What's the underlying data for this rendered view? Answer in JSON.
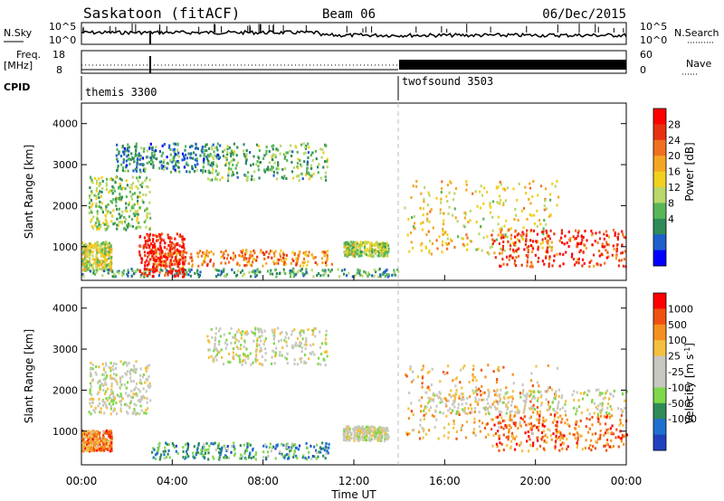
{
  "header": {
    "station": "Saskatoon (fitACF)",
    "beam": "Beam 06",
    "date": "06/Dec/2015"
  },
  "top_panels": {
    "nsky_label": "N.Sky",
    "nsky_ticks": [
      "10^5",
      "10^0"
    ],
    "nsearch_label": "N.Search",
    "nsearch_ticks": [
      "10^5",
      "10^0"
    ],
    "freq_label_1": "Freq.",
    "freq_label_2": "[MHz]",
    "freq_ticks": [
      "18",
      "8"
    ],
    "nave_label": "Nave",
    "nave_ticks": [
      "60",
      "0"
    ],
    "cpid_label": "CPID",
    "cpid_modes": [
      {
        "name": "themis 3300",
        "start_hour": 0
      },
      {
        "name": "twofsound 3503",
        "start_hour": 14
      }
    ]
  },
  "x_axis": {
    "label": "Time UT",
    "ticks": [
      "00:00",
      "04:00",
      "08:00",
      "12:00",
      "16:00",
      "20:00",
      "00:00"
    ],
    "range_hours": [
      0,
      24
    ]
  },
  "chart_data": [
    {
      "type": "heatmap",
      "panel": "power",
      "ylabel": "Slant Range [km]",
      "yticks": [
        "4000",
        "3000",
        "2000",
        "1000"
      ],
      "ylim": [
        180,
        4500
      ],
      "colorbar": {
        "label": "Power [dB]",
        "ticks": [
          "28",
          "24",
          "20",
          "16",
          "12",
          "8",
          "4"
        ],
        "colors": [
          "#0000ff",
          "#1f5fcc",
          "#2e8b57",
          "#58b658",
          "#b8d86a",
          "#f2d020",
          "#f5a623",
          "#f07020",
          "#e83010",
          "#ff0000"
        ]
      },
      "regions": [
        {
          "t": [
            0,
            1.3
          ],
          "r": [
            400,
            1100
          ],
          "level": 0.5
        },
        {
          "t": [
            0.3,
            3.0
          ],
          "r": [
            1400,
            2700
          ],
          "level": 0.4
        },
        {
          "t": [
            3.0,
            11.0
          ],
          "r": [
            500,
            900
          ],
          "level": 0.7
        },
        {
          "t": [
            5.5,
            10.8
          ],
          "r": [
            2600,
            3500
          ],
          "level": 0.35
        },
        {
          "t": [
            1.5,
            6.0
          ],
          "r": [
            2800,
            3500
          ],
          "level": 0.25
        },
        {
          "t": [
            11.5,
            13.5
          ],
          "r": [
            750,
            1100
          ],
          "level": 0.45
        },
        {
          "t": [
            14.2,
            21.0
          ],
          "r": [
            800,
            2600
          ],
          "level": 0.55
        },
        {
          "t": [
            18.0,
            24.0
          ],
          "r": [
            500,
            1400
          ],
          "level": 0.85
        },
        {
          "t": [
            0,
            14.0
          ],
          "r": [
            250,
            450
          ],
          "level": 0.3
        },
        {
          "t": [
            2.5,
            4.5
          ],
          "r": [
            250,
            1300
          ],
          "level": 0.9
        }
      ]
    },
    {
      "type": "heatmap",
      "panel": "velocity",
      "ylabel": "Slant Range [km]",
      "yticks": [
        "4000",
        "3000",
        "2000",
        "1000"
      ],
      "ylim": [
        180,
        4500
      ],
      "colorbar": {
        "label": "Velocity [m s^-1]",
        "ticks": [
          "1000",
          "500",
          "100",
          "25",
          "-25",
          "-100",
          "-500",
          "-1000"
        ],
        "colors": [
          "#2140c0",
          "#1f6fd0",
          "#2e8b57",
          "#7fd84a",
          "#c8c8c0",
          "#c8c8c0",
          "#f5c040",
          "#f59020",
          "#f05010",
          "#ff0000"
        ]
      },
      "regions": [
        {
          "t": [
            0,
            1.3
          ],
          "r": [
            500,
            1000
          ],
          "level": 0.75
        },
        {
          "t": [
            0.3,
            3.0
          ],
          "r": [
            1400,
            2700
          ],
          "level": 0.5
        },
        {
          "t": [
            3.0,
            11.0
          ],
          "r": [
            300,
            700
          ],
          "level": 0.25
        },
        {
          "t": [
            5.5,
            10.8
          ],
          "r": [
            2600,
            3500
          ],
          "level": 0.5
        },
        {
          "t": [
            11.5,
            13.5
          ],
          "r": [
            750,
            1100
          ],
          "level": 0.5
        },
        {
          "t": [
            14.2,
            21.0
          ],
          "r": [
            800,
            2600
          ],
          "level": 0.7
        },
        {
          "t": [
            18.0,
            24.0
          ],
          "r": [
            500,
            1400
          ],
          "level": 0.8
        },
        {
          "t": [
            15.0,
            24.0
          ],
          "r": [
            1400,
            2000
          ],
          "level": 0.5
        }
      ]
    }
  ]
}
